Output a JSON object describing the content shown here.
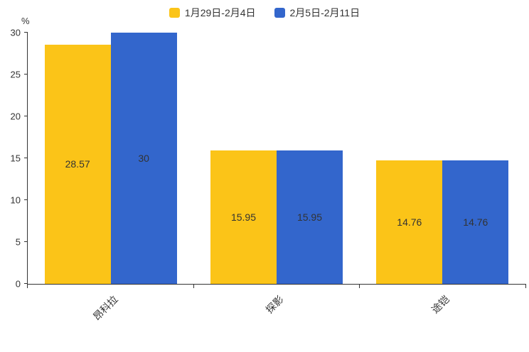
{
  "chart_data": {
    "type": "bar",
    "title": "",
    "categories": [
      "昂科拉",
      "探影",
      "途铠"
    ],
    "series": [
      {
        "name": "1月29日-2月4日",
        "color": "#FBC418",
        "values": [
          28.57,
          15.95,
          14.76
        ],
        "labels": [
          "28.57",
          "15.95",
          "14.76"
        ]
      },
      {
        "name": "2月5日-2月11日",
        "color": "#3366CC",
        "values": [
          30,
          15.95,
          14.76
        ],
        "labels": [
          "30",
          "15.95",
          "14.76"
        ]
      }
    ],
    "xlabel": "",
    "ylabel": "%",
    "ylim": [
      0,
      30
    ],
    "yticks": [
      0,
      5,
      10,
      15,
      20,
      25,
      30
    ],
    "legend_position": "top-center",
    "grid": false,
    "bar_label_position": "inside-center",
    "x_label_rotation_deg": 45
  }
}
